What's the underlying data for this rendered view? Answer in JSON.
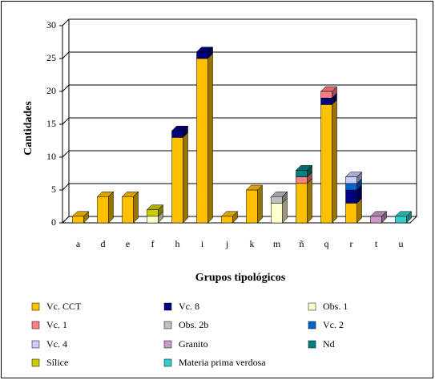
{
  "chart_data": {
    "type": "bar",
    "stacked": true,
    "y_label": "Cantidades",
    "x_label": "Grupos tipológicos",
    "categories": [
      "a",
      "d",
      "e",
      "f",
      "h",
      "i",
      "j",
      "k",
      "m",
      "ñ",
      "q",
      "r",
      "t",
      "u"
    ],
    "series": [
      {
        "name": "Vc. CCT",
        "color": "#ffc000",
        "values": [
          1,
          4,
          4,
          0,
          13,
          25,
          1,
          5,
          0,
          6,
          18,
          3,
          0,
          0
        ]
      },
      {
        "name": "Vc. 8",
        "color": "#000080",
        "values": [
          0,
          0,
          0,
          0,
          1,
          1,
          0,
          0,
          0,
          0,
          1,
          2,
          0,
          0
        ]
      },
      {
        "name": "Obs. 1",
        "color": "#ffffcc",
        "values": [
          0,
          0,
          0,
          1,
          0,
          0,
          0,
          0,
          3,
          0,
          0,
          0,
          0,
          0
        ]
      },
      {
        "name": "Vc. 1",
        "color": "#ff8080",
        "values": [
          0,
          0,
          0,
          0,
          0,
          0,
          0,
          0,
          0,
          1,
          1,
          0,
          0,
          0
        ]
      },
      {
        "name": "Obs. 2b",
        "color": "#c0c0c0",
        "values": [
          0,
          0,
          0,
          0,
          0,
          0,
          0,
          0,
          1,
          0,
          0,
          0,
          0,
          0
        ]
      },
      {
        "name": "Vc. 2",
        "color": "#0066cc",
        "values": [
          0,
          0,
          0,
          0,
          0,
          0,
          0,
          0,
          0,
          0,
          0,
          1,
          0,
          0
        ]
      },
      {
        "name": "Vc. 4",
        "color": "#ccccff",
        "values": [
          0,
          0,
          0,
          0,
          0,
          0,
          0,
          0,
          0,
          0,
          0,
          1,
          0,
          0
        ]
      },
      {
        "name": "Granito",
        "color": "#cc99cc",
        "values": [
          0,
          0,
          0,
          0,
          0,
          0,
          0,
          0,
          0,
          0,
          0,
          0,
          1,
          0
        ]
      },
      {
        "name": "Nd",
        "color": "#008080",
        "values": [
          0,
          0,
          0,
          0,
          0,
          0,
          0,
          0,
          0,
          1,
          0,
          0,
          0,
          0
        ]
      },
      {
        "name": "Sílice",
        "color": "#cccc00",
        "values": [
          0,
          0,
          0,
          1,
          0,
          0,
          0,
          0,
          0,
          0,
          0,
          0,
          0,
          0
        ]
      },
      {
        "name": "Materia prima verdosa",
        "color": "#33cccc",
        "values": [
          0,
          0,
          0,
          0,
          0,
          0,
          0,
          0,
          0,
          0,
          0,
          0,
          0,
          1
        ]
      }
    ],
    "ylim": [
      0,
      30
    ],
    "yticks": [
      0,
      5,
      10,
      15,
      20,
      25,
      30
    ],
    "grid": true,
    "legend": "bottom"
  }
}
